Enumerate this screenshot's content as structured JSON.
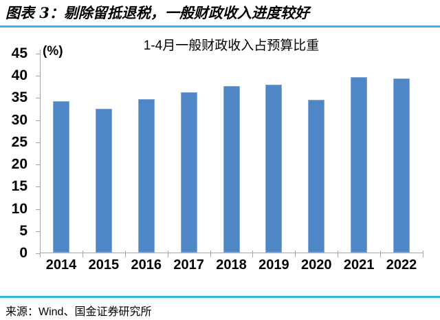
{
  "header": {
    "title": "图表 3：剔除留抵退税，一般财政收入进度较好"
  },
  "chart_data": {
    "type": "bar",
    "title": "1-4月一般财政收入占预算比重",
    "unit_label": "(%)",
    "categories": [
      "2014",
      "2015",
      "2016",
      "2017",
      "2018",
      "2019",
      "2020",
      "2021",
      "2022"
    ],
    "values": [
      34.1,
      32.4,
      34.6,
      36.2,
      37.6,
      37.8,
      34.4,
      39.5,
      39.2
    ],
    "ylim": [
      0,
      45
    ],
    "yticks": [
      0,
      5,
      10,
      15,
      20,
      25,
      30,
      35,
      40,
      45
    ],
    "grid": false,
    "legend_position": "none",
    "bar_color": "#4E86C6",
    "bar_edge_color": "#86ABDC",
    "axis_color": "#A6A6A6"
  },
  "colors": {
    "rule_blue": "#3BB3E6",
    "text": "#000000",
    "background": "#FFFFFF"
  },
  "source": {
    "text": "来源：Wind、国金证券研究所"
  }
}
